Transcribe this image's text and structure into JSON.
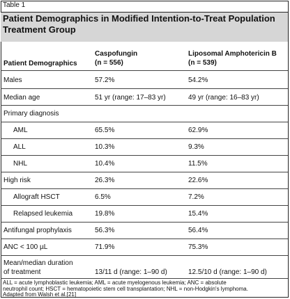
{
  "table_number": "Table 1",
  "title_line1": "Patient Demographics in Modified Intention-to-Treat Population",
  "title_line2": "Treatment Group",
  "header": {
    "col1": "Patient Demographics",
    "col2_line1": "Caspofungin",
    "col2_line2": "(n = 556)",
    "col3_line1": "Liposomal Amphotericin B",
    "col3_line2": "(n = 539)"
  },
  "rows": [
    {
      "label": "Males",
      "c": "57.2%",
      "l": "54.2%"
    },
    {
      "label": "Median age",
      "c": "51 yr (range: 17–83 yr)",
      "l": "49 yr (range: 16–83 yr)"
    },
    {
      "label": "Primary diagnosis",
      "c": "",
      "l": ""
    },
    {
      "label": "AML",
      "c": "65.5%",
      "l": "62.9%"
    },
    {
      "label": "ALL",
      "c": "10.3%",
      "l": "9.3%"
    },
    {
      "label": "NHL",
      "c": "10.4%",
      "l": "11.5%"
    },
    {
      "label": "High risk",
      "c": "26.3%",
      "l": "22.6%"
    },
    {
      "label": "Allograft HSCT",
      "c": "6.5%",
      "l": "7.2%"
    },
    {
      "label": "Relapsed leukemia",
      "c": "19.8%",
      "l": "15.4%"
    },
    {
      "label": "Antifungal prophylaxis",
      "c": "56.3%",
      "l": "56.4%"
    },
    {
      "label": "ANC < 100 µL",
      "c": "71.9%",
      "l": "75.3%"
    },
    {
      "label_line1": "Mean/median duration",
      "label_line2": "of treatment",
      "c": "13/11 d (range: 1–90 d)",
      "l": "12.5/10 d (range: 1–90 d)"
    }
  ],
  "footnote_line1": "ALL = acute lymphoblastic leukemia; AML = acute myelogenous leukemia; ANC = absolute",
  "footnote_line2": "neutrophil count; HSCT = hematopoietic stem cell transplantation; NHL = non-Hodgkin's lymphoma.",
  "source": "Adapted from Walsh et al.[21]"
}
